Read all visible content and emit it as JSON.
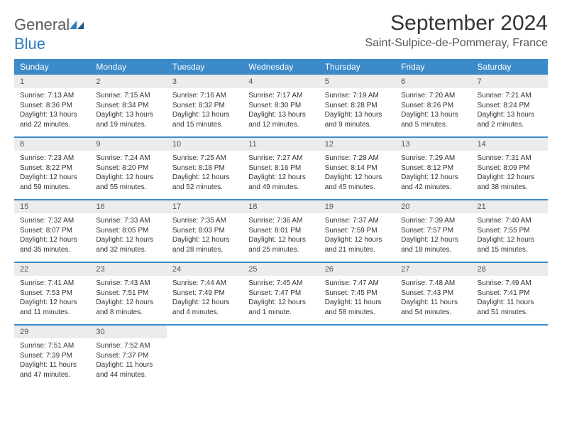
{
  "logo": {
    "word1": "General",
    "word2": "Blue"
  },
  "title": "September 2024",
  "location": "Saint-Sulpice-de-Pommeray, France",
  "colors": {
    "header_bg": "#3b8aca",
    "header_text": "#ffffff",
    "daynum_bg": "#ececec",
    "row_border": "#3b8aca",
    "logo_gray": "#5a5a5a",
    "logo_blue": "#2f7dbb"
  },
  "weekdays": [
    "Sunday",
    "Monday",
    "Tuesday",
    "Wednesday",
    "Thursday",
    "Friday",
    "Saturday"
  ],
  "weeks": [
    [
      {
        "n": "1",
        "sr": "7:13 AM",
        "ss": "8:36 PM",
        "dl": "13 hours and 22 minutes."
      },
      {
        "n": "2",
        "sr": "7:15 AM",
        "ss": "8:34 PM",
        "dl": "13 hours and 19 minutes."
      },
      {
        "n": "3",
        "sr": "7:16 AM",
        "ss": "8:32 PM",
        "dl": "13 hours and 15 minutes."
      },
      {
        "n": "4",
        "sr": "7:17 AM",
        "ss": "8:30 PM",
        "dl": "13 hours and 12 minutes."
      },
      {
        "n": "5",
        "sr": "7:19 AM",
        "ss": "8:28 PM",
        "dl": "13 hours and 9 minutes."
      },
      {
        "n": "6",
        "sr": "7:20 AM",
        "ss": "8:26 PM",
        "dl": "13 hours and 5 minutes."
      },
      {
        "n": "7",
        "sr": "7:21 AM",
        "ss": "8:24 PM",
        "dl": "13 hours and 2 minutes."
      }
    ],
    [
      {
        "n": "8",
        "sr": "7:23 AM",
        "ss": "8:22 PM",
        "dl": "12 hours and 59 minutes."
      },
      {
        "n": "9",
        "sr": "7:24 AM",
        "ss": "8:20 PM",
        "dl": "12 hours and 55 minutes."
      },
      {
        "n": "10",
        "sr": "7:25 AM",
        "ss": "8:18 PM",
        "dl": "12 hours and 52 minutes."
      },
      {
        "n": "11",
        "sr": "7:27 AM",
        "ss": "8:16 PM",
        "dl": "12 hours and 49 minutes."
      },
      {
        "n": "12",
        "sr": "7:28 AM",
        "ss": "8:14 PM",
        "dl": "12 hours and 45 minutes."
      },
      {
        "n": "13",
        "sr": "7:29 AM",
        "ss": "8:12 PM",
        "dl": "12 hours and 42 minutes."
      },
      {
        "n": "14",
        "sr": "7:31 AM",
        "ss": "8:09 PM",
        "dl": "12 hours and 38 minutes."
      }
    ],
    [
      {
        "n": "15",
        "sr": "7:32 AM",
        "ss": "8:07 PM",
        "dl": "12 hours and 35 minutes."
      },
      {
        "n": "16",
        "sr": "7:33 AM",
        "ss": "8:05 PM",
        "dl": "12 hours and 32 minutes."
      },
      {
        "n": "17",
        "sr": "7:35 AM",
        "ss": "8:03 PM",
        "dl": "12 hours and 28 minutes."
      },
      {
        "n": "18",
        "sr": "7:36 AM",
        "ss": "8:01 PM",
        "dl": "12 hours and 25 minutes."
      },
      {
        "n": "19",
        "sr": "7:37 AM",
        "ss": "7:59 PM",
        "dl": "12 hours and 21 minutes."
      },
      {
        "n": "20",
        "sr": "7:39 AM",
        "ss": "7:57 PM",
        "dl": "12 hours and 18 minutes."
      },
      {
        "n": "21",
        "sr": "7:40 AM",
        "ss": "7:55 PM",
        "dl": "12 hours and 15 minutes."
      }
    ],
    [
      {
        "n": "22",
        "sr": "7:41 AM",
        "ss": "7:53 PM",
        "dl": "12 hours and 11 minutes."
      },
      {
        "n": "23",
        "sr": "7:43 AM",
        "ss": "7:51 PM",
        "dl": "12 hours and 8 minutes."
      },
      {
        "n": "24",
        "sr": "7:44 AM",
        "ss": "7:49 PM",
        "dl": "12 hours and 4 minutes."
      },
      {
        "n": "25",
        "sr": "7:45 AM",
        "ss": "7:47 PM",
        "dl": "12 hours and 1 minute."
      },
      {
        "n": "26",
        "sr": "7:47 AM",
        "ss": "7:45 PM",
        "dl": "11 hours and 58 minutes."
      },
      {
        "n": "27",
        "sr": "7:48 AM",
        "ss": "7:43 PM",
        "dl": "11 hours and 54 minutes."
      },
      {
        "n": "28",
        "sr": "7:49 AM",
        "ss": "7:41 PM",
        "dl": "11 hours and 51 minutes."
      }
    ],
    [
      {
        "n": "29",
        "sr": "7:51 AM",
        "ss": "7:39 PM",
        "dl": "11 hours and 47 minutes."
      },
      {
        "n": "30",
        "sr": "7:52 AM",
        "ss": "7:37 PM",
        "dl": "11 hours and 44 minutes."
      },
      null,
      null,
      null,
      null,
      null
    ]
  ],
  "labels": {
    "sunrise": "Sunrise: ",
    "sunset": "Sunset: ",
    "daylight": "Daylight: "
  }
}
